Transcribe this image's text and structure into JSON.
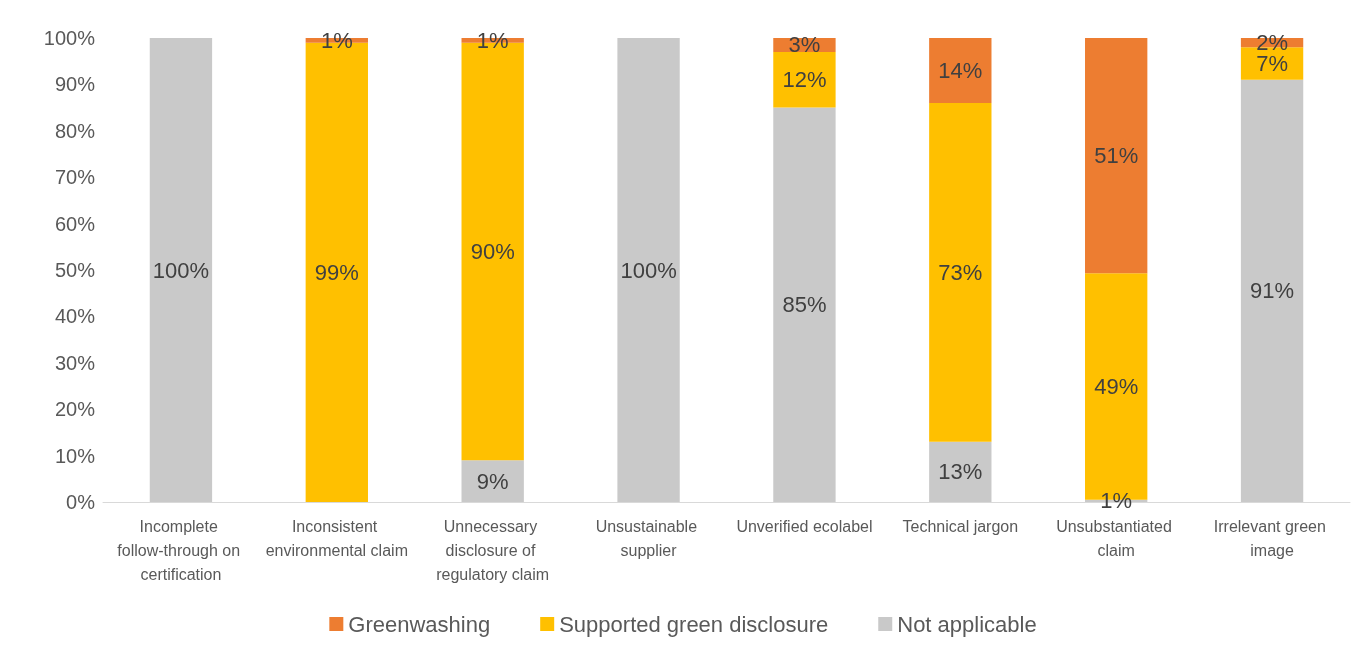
{
  "chart_data": {
    "type": "bar",
    "stacked": true,
    "categories": [
      "Incomplete follow-through on certification",
      "Inconsistent environmental claim",
      "Unnecessary disclosure of regulatory claim",
      "Unsustainable supplier",
      "Unverified ecolabel",
      "Technical jargon",
      "Unsubstantiated claim",
      "Irrelevant green image"
    ],
    "series": [
      {
        "name": "Not applicable",
        "color": "#c9c9c9",
        "values": [
          100,
          0,
          9,
          100,
          85,
          13,
          0.5,
          91
        ],
        "value_labels": [
          "100%",
          null,
          "9%",
          "100%",
          "85%",
          "13%",
          "1%",
          "91%"
        ]
      },
      {
        "name": "Supported green disclosure",
        "color": "#ffc000",
        "values": [
          0,
          99,
          90,
          0,
          12,
          73,
          48.8,
          7
        ],
        "value_labels": [
          null,
          "99%",
          "90%",
          null,
          "12%",
          "73%",
          "49%",
          "7%"
        ]
      },
      {
        "name": "Greenwashing",
        "color": "#ed7d31",
        "values": [
          0,
          1,
          1,
          0,
          3,
          14,
          50.7,
          2
        ],
        "value_labels": [
          null,
          "1%",
          "1%",
          null,
          "3%",
          "14%",
          "51%",
          "2%"
        ]
      }
    ],
    "ylim": [
      0,
      100
    ],
    "yticks": [
      {
        "value": 0,
        "label": "0%"
      },
      {
        "value": 10,
        "label": "10%"
      },
      {
        "value": 20,
        "label": "20%"
      },
      {
        "value": 30,
        "label": "30%"
      },
      {
        "value": 40,
        "label": "40%"
      },
      {
        "value": 50,
        "label": "50%"
      },
      {
        "value": 60,
        "label": "60%"
      },
      {
        "value": 70,
        "label": "70%"
      },
      {
        "value": 80,
        "label": "80%"
      },
      {
        "value": 90,
        "label": "90%"
      },
      {
        "value": 100,
        "label": "100%"
      }
    ],
    "grid": false,
    "legend": "bottom"
  }
}
